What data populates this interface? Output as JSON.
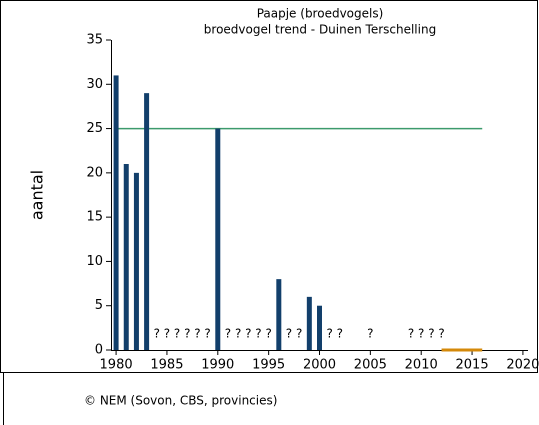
{
  "chart_data": {
    "type": "bar",
    "title": "Paapje (broedvogels)",
    "subtitle": "broedvogel trend - Duinen Terschelling",
    "y_label": "aantal",
    "footer": "© NEM (Sovon, CBS, provincies)",
    "x": [
      1980,
      1981,
      1982,
      1983,
      1990,
      1996,
      1999,
      2000
    ],
    "values": [
      31,
      21,
      20,
      29,
      25,
      8,
      6,
      5
    ],
    "color": "#123f6b",
    "missing_label": "?",
    "missing_years": [
      1984,
      1985,
      1986,
      1987,
      1988,
      1989,
      1991,
      1992,
      1993,
      1994,
      1995,
      1997,
      1998,
      2001,
      2002,
      2005,
      2009,
      2010,
      2011,
      2012
    ],
    "reference_lines": [
      {
        "value": 25,
        "x": [
          1980,
          2016
        ],
        "color": "#3c9a6c"
      },
      {
        "value": 0,
        "x": [
          2012,
          2016
        ],
        "color": "#d4890a"
      }
    ],
    "xlim": [
      1979.5,
      2020.5
    ],
    "xticks": [
      1980,
      1985,
      1990,
      1995,
      2000,
      2005,
      2010,
      2015,
      2020
    ],
    "ylim": [
      0,
      35
    ],
    "yticks": [
      0,
      5,
      10,
      15,
      20,
      25,
      30,
      35
    ],
    "grid": false
  }
}
